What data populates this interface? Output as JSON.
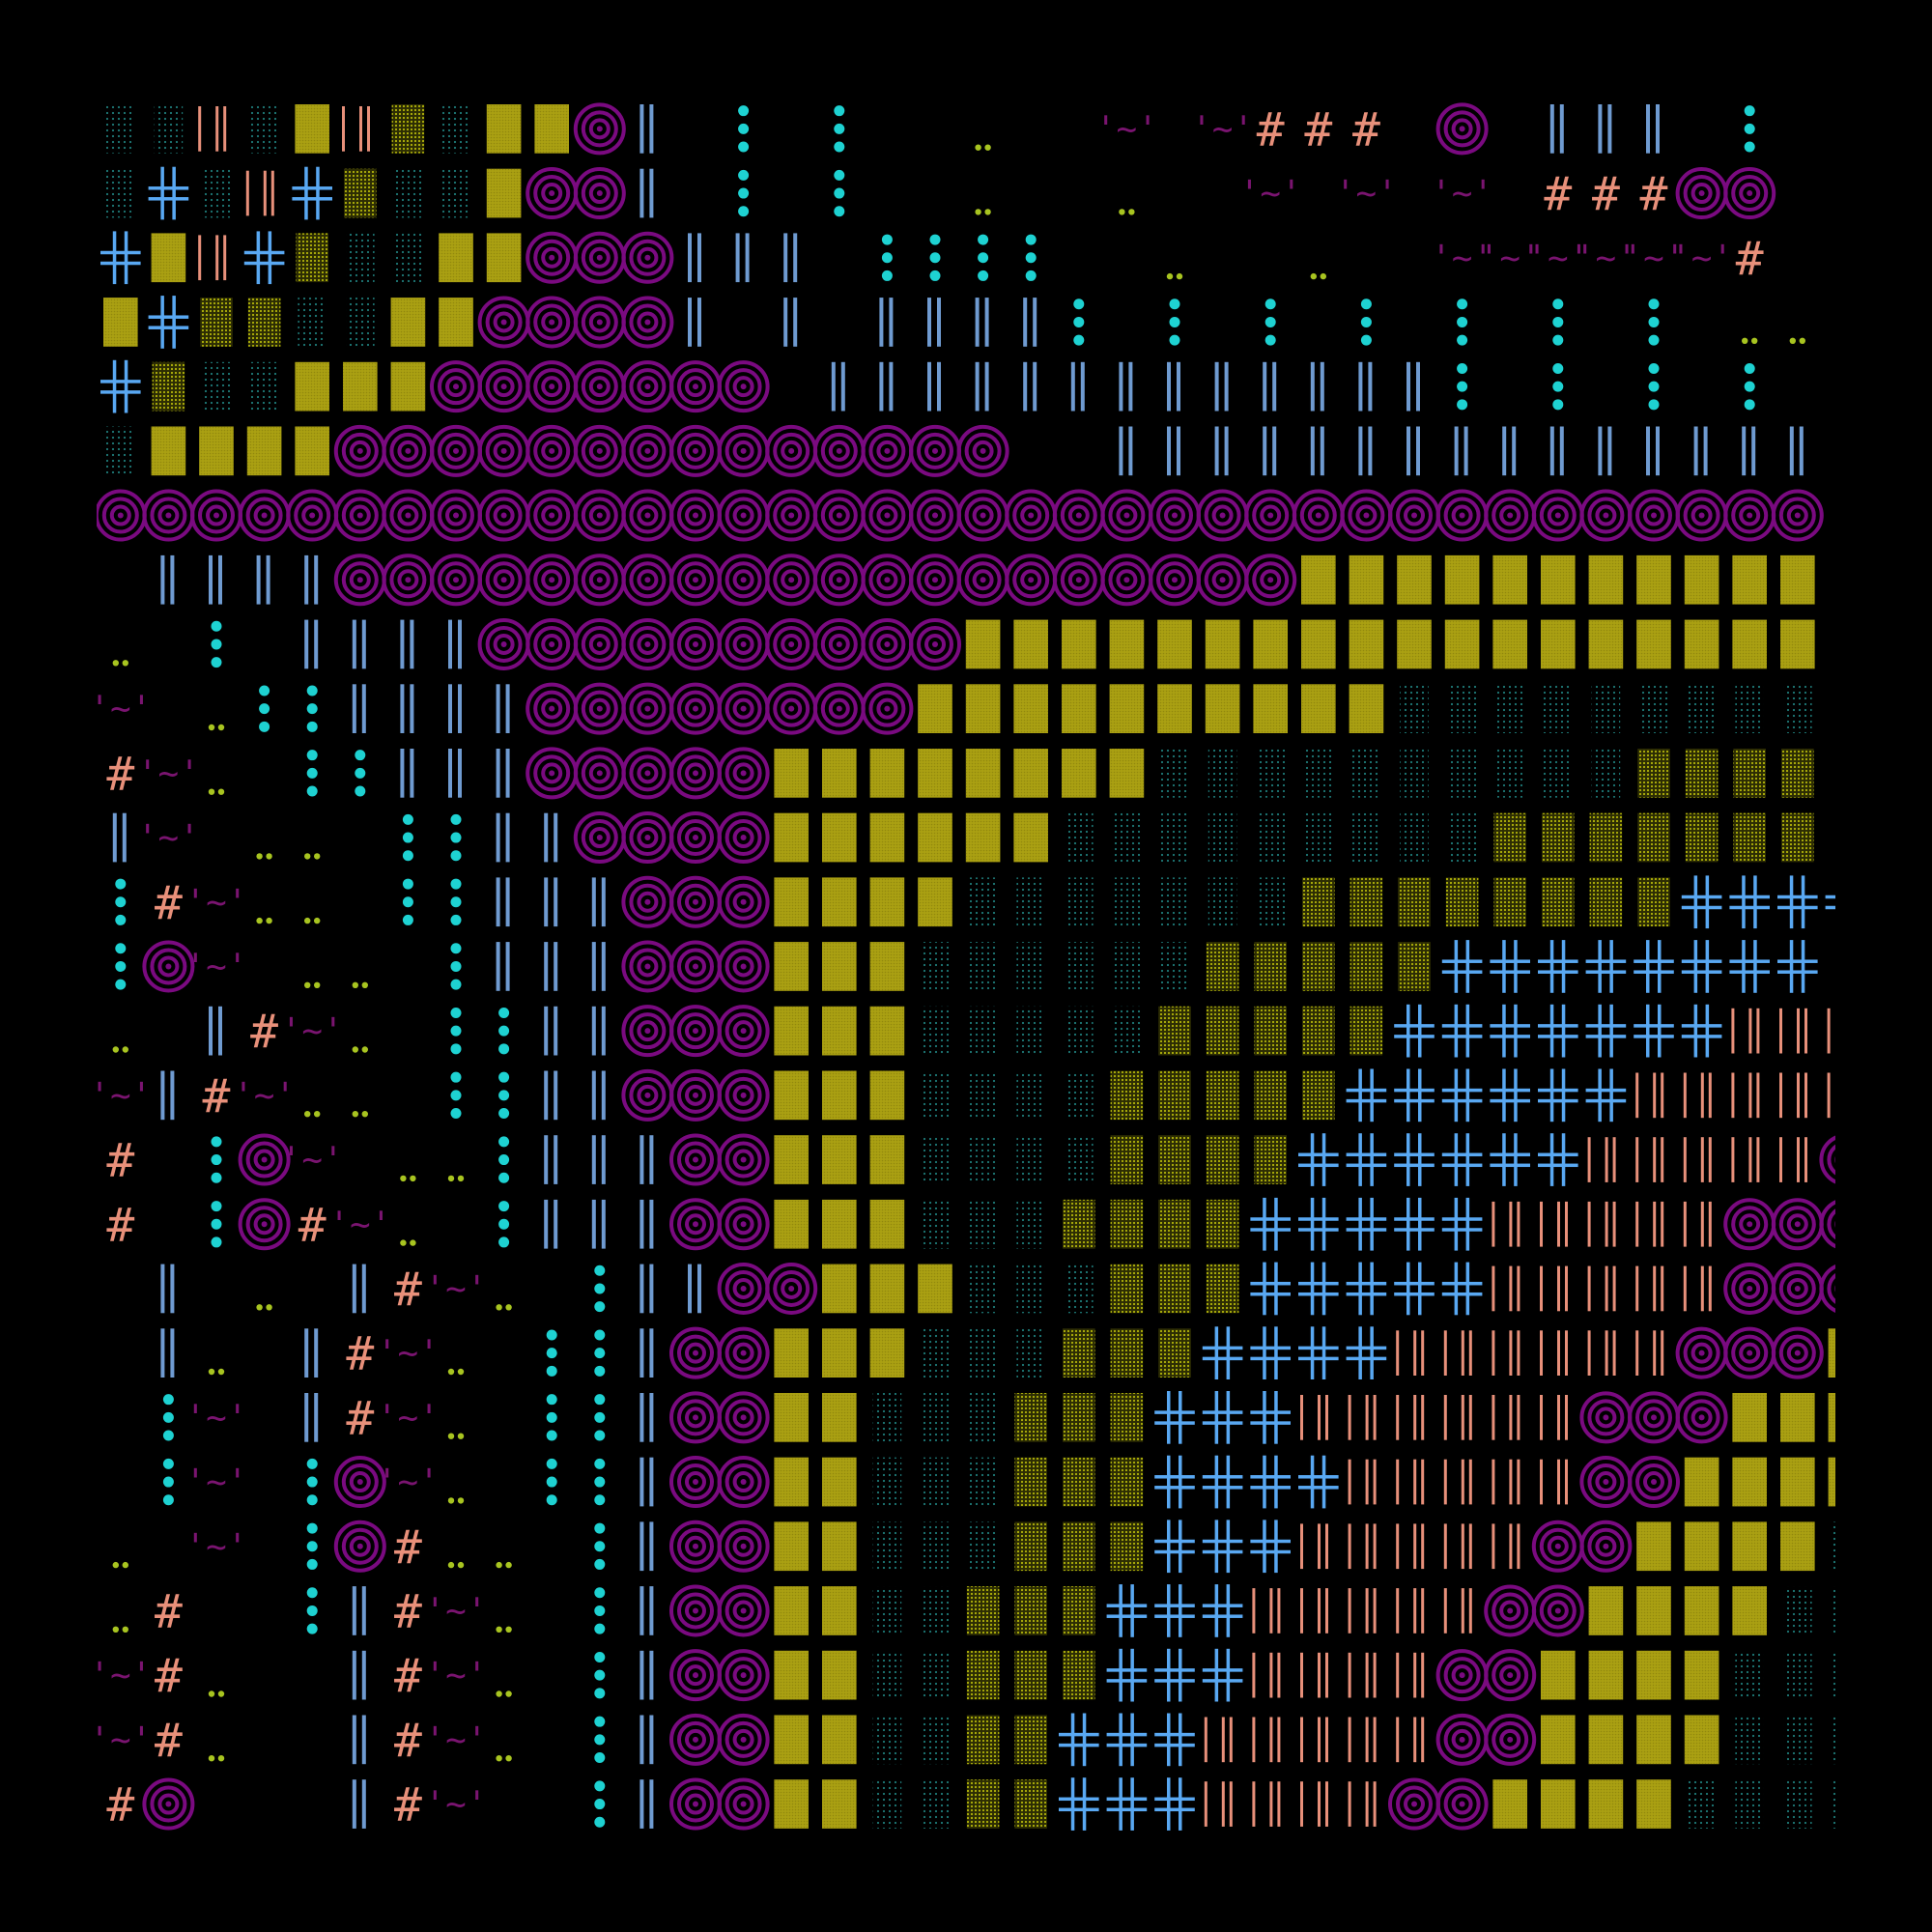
{
  "canvas": {
    "background": "#000000",
    "columns": 36,
    "rows": 27
  },
  "palette": {
    "A": {
      "name": "concentric-circle-glyph",
      "color": "#7a0a80"
    },
    "B": {
      "name": "double-bar-glyph",
      "color": "#6f9bd1"
    },
    "C": {
      "name": "dotted-column-glyph",
      "color": "#1ed2d2"
    },
    "D": {
      "name": "dither-cyan-glyph",
      "color": "#1e7a78"
    },
    "E": {
      "name": "dither-olive-glyph",
      "color": "#b2b40a"
    },
    "F": {
      "name": "olive-block-glyph",
      "color": "#aaa012"
    },
    "G": {
      "name": "double-cross-glyph",
      "color": "#59a8f2"
    },
    "H": {
      "name": "salmon-bars-glyph",
      "color": "#e8907a"
    },
    "I": {
      "name": "hash-glyph",
      "color": "#e8907a"
    },
    "J": {
      "name": "tilde-wave-glyph",
      "color": "#7a1470"
    },
    "K": {
      "name": "dot-pair-glyph",
      "color": "#a8c420"
    },
    ".": {
      "name": "empty-cell",
      "color": "#000000"
    }
  },
  "grid": [
    "DDHDFHEDFFAB.C.C..K..J.JIII.A.BBB.C.",
    "DGDHGEDDFAAB.C.C..K..K..J.J.J.IIIAA.",
    "GFHGEDDFFAAABBB.CCCC..K..K..JJJJJJI.",
    "FGEEDDFFAAAAB.B.BBBBC.C.C.C.C.C.C.KK",
    "GEDDFFFAAAAAAA.BBBBBBBBBBBBBC.C.C.C.",
    "DFFFFAAAAAAAAAAAAAA..BBBBBBBBBBBBBBB",
    "AAAAAAAAAAAAAAAAAAAAAAAAAAAAAAAAAAAA",
    ".BBBBAAAAAAAAAAAAAAAAAAAAFFFFFFFFFFF",
    "K.C.BBBBAAAAAAAAAAFFFFFFFFFFFFFFFFFF",
    "J.KCCBBBBAAAAAAAAFFFFFFFFFFDDDDDDDDD",
    "IJK.CCBBBAAAAAFFFFFFFFDDDDDDDDDDEEEE",
    "BJ.KK.CCBBAAAAFFFFFFDDDDDDDDDEEEEEEE",
    "CIJKK.CCBBBAAAFFFFDDDDDDDEEEEEEEEGGGG",
    "CAJ.KK.CBBBAAAFFFDDDDDDEEEEEGGGGGGGG",
    "K.BIJK.CCBBAAAFFFDDDDDEEEEEGGGGGGGHHH",
    "JBIJKK.CCBBAAAFFFDDDDEEEEEGGGGGGHHHHH",
    "I.CAJ.KKCBBBAAFFFDDDDEEEEGGGGGGHHHHHA",
    "I.CAIJK.CBBBAAFFFDDDEEEEGGGGGHHHHHAAA",
    ".B.K.BIJK.CBBAAFFFDDDEEEGGGGGHHHHHAAAAF",
    ".BK.BIJK.CCBAAFFFDDDEEEGGGGHHHHHHAAAFFF",
    ".CJ.BIJK.CCBAAFFDDDEEEGGGHHHHHHAAAFFFF",
    ".CJ.CAJK.CCBAAFFDDDEEEGGGGHHHHHAAFFFFFD",
    "K.J.CAIKK.CBAAFFDDDEEEGGGHHHHHAAFFFFDDDD",
    "KI..CBIJK.CBAAFFDDEEEGGGHHHHHAAFFFFDDDDD",
    "JIK..BIJK.CBAAFFDDEEEGGGHHHHAAFFFFDDDDDE",
    "JIK..BIJK.CBAAFFDDEEGGGHHHHHAAFFFFDDDDEEE",
    "IA...BIJ..CBAAFFDDEEGGGHHHHAAFFFFDDDDEEE"
  ]
}
